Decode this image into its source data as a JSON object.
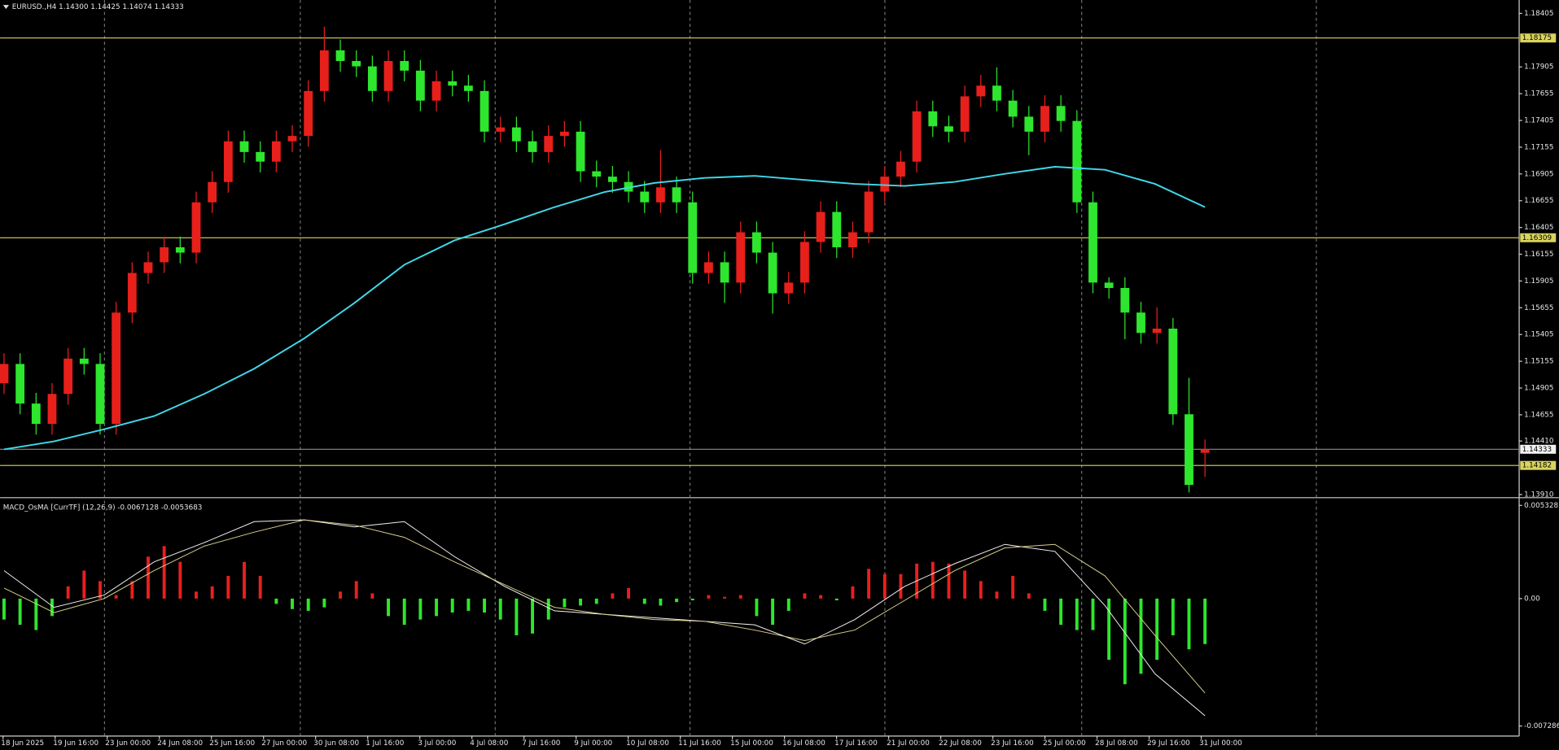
{
  "chart_data": [
    {
      "type": "candlestick",
      "title": "EURUSD.,H4  1.14300 1.14425 1.14074 1.14333",
      "open": [
        1.1495,
        1.1513,
        1.1476,
        1.1457,
        1.1485,
        1.1518,
        1.1513,
        1.1457,
        1.1561,
        1.1598,
        1.1608,
        1.1622,
        1.1617,
        1.1664,
        1.1683,
        1.1721,
        1.1711,
        1.1702,
        1.1721,
        1.1726,
        1.1768,
        1.1806,
        1.1796,
        1.1791,
        1.1768,
        1.1796,
        1.1787,
        1.1759,
        1.1777,
        1.1773,
        1.1768,
        1.173,
        1.1734,
        1.1721,
        1.1711,
        1.1726,
        1.173,
        1.1693,
        1.1688,
        1.1683,
        1.1674,
        1.1664,
        1.1678,
        1.1664,
        1.1598,
        1.1608,
        1.1589,
        1.1636,
        1.1617,
        1.1579,
        1.1589,
        1.1627,
        1.1655,
        1.1622,
        1.1636,
        1.1674,
        1.1688,
        1.1702,
        1.1749,
        1.1735,
        1.173,
        1.1763,
        1.1773,
        1.1759,
        1.1744,
        1.173,
        1.1754,
        1.174,
        1.1664,
        1.1589,
        1.1584,
        1.1561,
        1.1542,
        1.1546,
        1.1466,
        1.143
      ],
      "high": [
        1.1523,
        1.1523,
        1.1486,
        1.1495,
        1.1528,
        1.1528,
        1.1523,
        1.1571,
        1.1608,
        1.1618,
        1.1632,
        1.1632,
        1.1674,
        1.1693,
        1.1731,
        1.1731,
        1.1721,
        1.1731,
        1.1736,
        1.1778,
        1.1828,
        1.1816,
        1.1806,
        1.1801,
        1.1806,
        1.1806,
        1.1797,
        1.1787,
        1.1787,
        1.1783,
        1.1778,
        1.1744,
        1.1744,
        1.1731,
        1.1736,
        1.174,
        1.174,
        1.1703,
        1.1698,
        1.1693,
        1.1684,
        1.1713,
        1.1688,
        1.1674,
        1.1618,
        1.1618,
        1.1646,
        1.1646,
        1.1627,
        1.1599,
        1.1637,
        1.1665,
        1.1665,
        1.1646,
        1.1684,
        1.1698,
        1.1712,
        1.1759,
        1.1759,
        1.1745,
        1.1773,
        1.1783,
        1.179,
        1.1769,
        1.1754,
        1.1764,
        1.1764,
        1.175,
        1.1674,
        1.1594,
        1.1594,
        1.1571,
        1.1566,
        1.1556,
        1.15,
        1.14425
      ],
      "low": [
        1.1485,
        1.1466,
        1.1447,
        1.1447,
        1.1475,
        1.1503,
        1.1447,
        1.1447,
        1.1551,
        1.1588,
        1.1598,
        1.1607,
        1.1607,
        1.1654,
        1.1673,
        1.1701,
        1.1692,
        1.1692,
        1.1711,
        1.1716,
        1.1758,
        1.1786,
        1.1781,
        1.1758,
        1.1758,
        1.1777,
        1.1749,
        1.1749,
        1.1763,
        1.1758,
        1.172,
        1.172,
        1.1711,
        1.1701,
        1.1701,
        1.1716,
        1.1683,
        1.1678,
        1.1673,
        1.1664,
        1.1654,
        1.1654,
        1.1654,
        1.1588,
        1.1588,
        1.157,
        1.1579,
        1.1607,
        1.156,
        1.1569,
        1.1579,
        1.1617,
        1.1612,
        1.1612,
        1.1626,
        1.1664,
        1.1678,
        1.1692,
        1.1725,
        1.172,
        1.172,
        1.1753,
        1.1749,
        1.1734,
        1.1708,
        1.172,
        1.173,
        1.1654,
        1.1579,
        1.1574,
        1.1536,
        1.1532,
        1.1532,
        1.1456,
        1.1393,
        1.14074
      ],
      "close": [
        1.1513,
        1.1476,
        1.1457,
        1.1485,
        1.1518,
        1.1513,
        1.1457,
        1.1561,
        1.1598,
        1.1608,
        1.1622,
        1.1617,
        1.1664,
        1.1683,
        1.1721,
        1.1711,
        1.1702,
        1.1721,
        1.1726,
        1.1768,
        1.1806,
        1.1796,
        1.1791,
        1.1768,
        1.1796,
        1.1787,
        1.1759,
        1.1777,
        1.1773,
        1.1768,
        1.173,
        1.1734,
        1.1721,
        1.1711,
        1.1726,
        1.173,
        1.1693,
        1.1688,
        1.1683,
        1.1674,
        1.1664,
        1.1678,
        1.1664,
        1.1598,
        1.1608,
        1.1589,
        1.1636,
        1.1617,
        1.1579,
        1.1589,
        1.1627,
        1.1655,
        1.1622,
        1.1636,
        1.1674,
        1.1688,
        1.1702,
        1.1749,
        1.1735,
        1.173,
        1.1763,
        1.1773,
        1.1759,
        1.1744,
        1.173,
        1.1754,
        1.174,
        1.1664,
        1.1589,
        1.1584,
        1.1561,
        1.1542,
        1.1546,
        1.1466,
        1.14,
        1.14333
      ],
      "up_color": "#e8201c",
      "down_color": "#2ee62e",
      "ma": {
        "color": "#3fd9ea",
        "values": [
          1.14332,
          1.14407,
          1.1452,
          1.14643,
          1.1485,
          1.15086,
          1.15369,
          1.15699,
          1.16057,
          1.16284,
          1.16435,
          1.16595,
          1.16736,
          1.16821,
          1.16868,
          1.16887,
          1.16849,
          1.16812,
          1.16793,
          1.16831,
          1.16906,
          1.16972,
          1.16944,
          1.16812,
          1.16595
        ]
      },
      "levels": [
        1.18175,
        1.16309,
        1.14182
      ],
      "level_color": "#d9d45c",
      "ylim": [
        1.1389,
        1.1853
      ],
      "yticks": [
        1.18405,
        1.17905,
        1.17655,
        1.17405,
        1.17155,
        1.16905,
        1.16655,
        1.16405,
        1.16155,
        1.15905,
        1.15655,
        1.15405,
        1.15155,
        1.14905,
        1.14655,
        {
          "value": 1.1441,
          "label": "1.14410"
        },
        {
          "value": 1.1391,
          "label": "1.13910"
        }
      ]
    },
    {
      "type": "macd",
      "title": "MACD_OsMA [CurrTF] (12,26,9) -0.0067128 -0.0053683",
      "histogram": [
        -0.0012,
        -0.0015,
        -0.0018,
        -0.001,
        0.0007,
        0.0016,
        0.001,
        0.0002,
        0.001,
        0.0024,
        0.003,
        0.0021,
        0.0004,
        0.0007,
        0.0013,
        0.0021,
        0.0013,
        -0.0003,
        -0.0006,
        -0.0007,
        -0.0005,
        0.0004,
        0.001,
        0.0003,
        -0.001,
        -0.0015,
        -0.0012,
        -0.001,
        -0.0008,
        -0.0007,
        -0.0008,
        -0.0012,
        -0.0021,
        -0.002,
        -0.0012,
        -0.0005,
        -0.0004,
        -0.0003,
        0.0003,
        0.0006,
        -0.0003,
        -0.0004,
        -0.0002,
        -0.0001,
        0.0002,
        0.0001,
        0.0002,
        -0.001,
        -0.0015,
        -0.0007,
        0.0003,
        0.0002,
        -0.0001,
        0.0007,
        0.0017,
        0.0014,
        0.0014,
        0.002,
        0.0021,
        0.002,
        0.0016,
        0.001,
        0.0004,
        0.0013,
        0.0003,
        -0.0007,
        -0.0015,
        -0.0018,
        -0.0018,
        -0.0035,
        -0.0049,
        -0.0043,
        -0.0035,
        -0.0021,
        -0.0029,
        -0.0026
      ],
      "pos_color": "#e8201c",
      "neg_color": "#2ee62e",
      "series": [
        {
          "color": "#f2f2f2",
          "values": [
            0.0016,
            -0.0005,
            0.0002,
            0.0021,
            0.0032,
            0.0044,
            0.0045,
            0.0041,
            0.0044,
            0.0024,
            0.0007,
            -0.0007,
            -0.0009,
            -0.0011,
            -0.0013,
            -0.0015,
            -0.0026,
            -0.0012,
            0.0007,
            0.002,
            0.0031,
            0.0027,
            -0.0004,
            -0.0043,
            -0.0067
          ]
        },
        {
          "color": "#d8d08a",
          "values": [
            0.0006,
            -0.0008,
            0,
            0.0016,
            0.003,
            0.0038,
            0.0045,
            0.0042,
            0.0035,
            0.0021,
            0.0008,
            -0.0005,
            -0.0009,
            -0.0012,
            -0.0013,
            -0.0018,
            -0.0024,
            -0.0018,
            -0.0001,
            0.0016,
            0.0029,
            0.0031,
            0.0013,
            -0.0021,
            -0.0054
          ]
        }
      ],
      "ylim": [
        -0.00775,
        0.0056
      ],
      "yticks": [
        0.005328,
        {
          "value": 0,
          "label": "0.00"
        },
        -0.007286
      ],
      "x_labels": [
        "18 Jun 2025",
        "19 Jun 16:00",
        "23 Jun 00:00",
        "24 Jun 08:00",
        "25 Jun 16:00",
        "27 Jun 00:00",
        "30 Jun 08:00",
        "1 Jul 16:00",
        "3 Jul 00:00",
        "4 Jul 08:00",
        "7 Jul 16:00",
        "9 Jul 00:00",
        "10 Jul 08:00",
        "11 Jul 16:00",
        "15 Jul 00:00",
        "16 Jul 08:00",
        "17 Jul 16:00",
        "21 Jul 00:00",
        "22 Jul 08:00",
        "23 Jul 16:00",
        "25 Jul 00:00",
        "28 Jul 08:00",
        "29 Jul 16:00",
        "31 Jul 00:00"
      ]
    }
  ]
}
